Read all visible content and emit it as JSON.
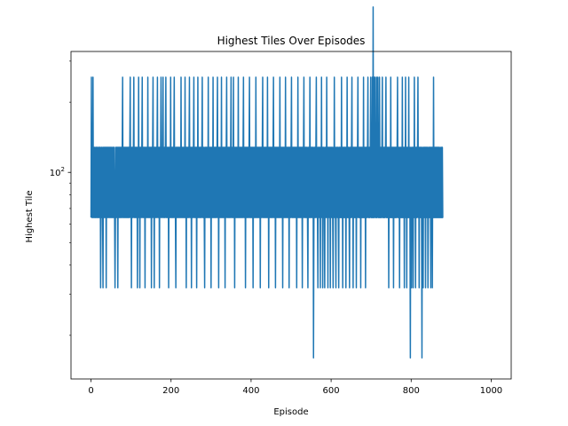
{
  "chart_data": {
    "type": "line",
    "title": "Highest Tiles Over Episodes",
    "xlabel": "Episode",
    "ylabel": "Highest Tile",
    "xlim": [
      -50,
      1050
    ],
    "ylim": [
      13.0,
      330
    ],
    "yscale": "log",
    "grid": false,
    "legend": "none",
    "x_ticks": [
      0,
      200,
      400,
      600,
      800,
      1000
    ],
    "x_tick_labels": [
      "0",
      "200",
      "400",
      "600",
      "800",
      "1000"
    ],
    "y_major_tick_value": 100,
    "y_major_tick_base": "10",
    "y_major_tick_exp": "2",
    "y_minor_ticks": [
      20,
      30,
      40,
      50,
      60,
      70,
      80,
      90,
      200,
      300
    ],
    "line_color": "#1f77b4",
    "series": [
      {
        "values": [
          64,
          256,
          64,
          128,
          64,
          256,
          64,
          128,
          64,
          128,
          64,
          64,
          128,
          64,
          128,
          64,
          128,
          64,
          64,
          128,
          64,
          128,
          64,
          128,
          32,
          64,
          128,
          64,
          128,
          64,
          32,
          128,
          64,
          128,
          64,
          128,
          64,
          128,
          32,
          128,
          64,
          128,
          64,
          128,
          64,
          128,
          64,
          128,
          64,
          128,
          64,
          128,
          64,
          64,
          128,
          64,
          128,
          64,
          128,
          64,
          32,
          64,
          128,
          64,
          128,
          64,
          128,
          32,
          128,
          64,
          128,
          64,
          128,
          64,
          128,
          64,
          128,
          64,
          128,
          256,
          64,
          128,
          64,
          128,
          64,
          128,
          64,
          128,
          64,
          128,
          64,
          128,
          64,
          128,
          64,
          128,
          64,
          128,
          256,
          64,
          128,
          32,
          128,
          64,
          128,
          64,
          128,
          256,
          64,
          128,
          64,
          128,
          64,
          128,
          64,
          128,
          32,
          128,
          64,
          256,
          64,
          128,
          32,
          128,
          64,
          128,
          64,
          128,
          256,
          64,
          128,
          64,
          128,
          64,
          128,
          32,
          128,
          64,
          128,
          64,
          128,
          64,
          256,
          64,
          128,
          64,
          128,
          64,
          128,
          64,
          128,
          32,
          128,
          64,
          128,
          256,
          64,
          128,
          32,
          128,
          64,
          128,
          64,
          128,
          64,
          128,
          256,
          64,
          128,
          64,
          128,
          32,
          128,
          64,
          128,
          256,
          64,
          128,
          64,
          128,
          256,
          64,
          128,
          64,
          128,
          64,
          128,
          256,
          64,
          128,
          64,
          128,
          64,
          128,
          32,
          128,
          64,
          128,
          64,
          256,
          64,
          128,
          64,
          128,
          64,
          128,
          64,
          128,
          256,
          64,
          128,
          64,
          32,
          128,
          64,
          128,
          64,
          128,
          64,
          128,
          64,
          128,
          64,
          128,
          64,
          256,
          64,
          128,
          64,
          128,
          64,
          128,
          64,
          128,
          64,
          256,
          64,
          128,
          32,
          128,
          64,
          128,
          64,
          128,
          64,
          128,
          256,
          64,
          128,
          64,
          128,
          32,
          128,
          64,
          128,
          64,
          128,
          256,
          64,
          128,
          64,
          128,
          64,
          128,
          32,
          128,
          64,
          256,
          64,
          128,
          64,
          128,
          64,
          128,
          64,
          128,
          64,
          128,
          256,
          64,
          128,
          64,
          128,
          64,
          32,
          128,
          64,
          128,
          64,
          128,
          64,
          128,
          64,
          256,
          64,
          128,
          64,
          128,
          64,
          128,
          32,
          128,
          64,
          128,
          64,
          256,
          64,
          128,
          64,
          128,
          64,
          128,
          64,
          128,
          64,
          128,
          256,
          64,
          128,
          32,
          128,
          64,
          128,
          64,
          128,
          64,
          256,
          64,
          128,
          64,
          128,
          64,
          128,
          64,
          128,
          32,
          128,
          64,
          128,
          256,
          64,
          128,
          64,
          128,
          64,
          128,
          64,
          128,
          64,
          128,
          256,
          64,
          128,
          64,
          128,
          64,
          256,
          64,
          128,
          32,
          128,
          64,
          128,
          64,
          128,
          64,
          128,
          64,
          256,
          64,
          128,
          64,
          128,
          64,
          128,
          64,
          128,
          64,
          128,
          64,
          128,
          256,
          64,
          128,
          64,
          128,
          32,
          128,
          64,
          128,
          64,
          128,
          64,
          128,
          64,
          128,
          256,
          64,
          128,
          64,
          128,
          64,
          128,
          64,
          128,
          32,
          128,
          64,
          128,
          64,
          128,
          64,
          256,
          64,
          128,
          64,
          128,
          64,
          128,
          64,
          128,
          64,
          128,
          32,
          128,
          64,
          128,
          64,
          128,
          256,
          64,
          128,
          64,
          128,
          64,
          128,
          64,
          128,
          64,
          128,
          64,
          256,
          64,
          128,
          32,
          128,
          64,
          128,
          64,
          128,
          64,
          128,
          64,
          128,
          64,
          128,
          256,
          64,
          128,
          64,
          128,
          32,
          128,
          64,
          128,
          64,
          128,
          64,
          128,
          64,
          128,
          64,
          256,
          64,
          128,
          64,
          128,
          64,
          128,
          32,
          128,
          64,
          128,
          64,
          128,
          64,
          256,
          64,
          128,
          64,
          128,
          64,
          128,
          64,
          128,
          32,
          128,
          64,
          128,
          64,
          128,
          256,
          64,
          128,
          64,
          128,
          64,
          128,
          64,
          128,
          64,
          128,
          64,
          128,
          32,
          128,
          64,
          256,
          64,
          128,
          64,
          128,
          64,
          128,
          64,
          128,
          64,
          128,
          32,
          128,
          64,
          128,
          256,
          64,
          128,
          64,
          128,
          64,
          128,
          64,
          128,
          64,
          32,
          128,
          64,
          128,
          64,
          256,
          64,
          128,
          64,
          128,
          64,
          128,
          64,
          128,
          16,
          64,
          128,
          64,
          128,
          64,
          128,
          256,
          64,
          128,
          64,
          32,
          128,
          64,
          128,
          64,
          128,
          32,
          128,
          64,
          256,
          64,
          128,
          32,
          128,
          64,
          128,
          64,
          32,
          128,
          64,
          128,
          64,
          256,
          64,
          128,
          32,
          128,
          64,
          128,
          64,
          128,
          32,
          128,
          64,
          128,
          64,
          128,
          64,
          32,
          128,
          64,
          256,
          64,
          128,
          64,
          32,
          128,
          64,
          128,
          64,
          128,
          64,
          32,
          128,
          64,
          128,
          64,
          128,
          64,
          256,
          64,
          128,
          32,
          128,
          64,
          128,
          64,
          128,
          64,
          128,
          32,
          128,
          64,
          256,
          64,
          128,
          64,
          128,
          64,
          32,
          128,
          64,
          128,
          64,
          128,
          256,
          64,
          128,
          32,
          128,
          64,
          128,
          64,
          128,
          64,
          128,
          32,
          128,
          64,
          128,
          256,
          64,
          128,
          64,
          128,
          64,
          128,
          32,
          128,
          64,
          128,
          64,
          128,
          64,
          256,
          64,
          128,
          64,
          128,
          32,
          128,
          64,
          128,
          64,
          128,
          256,
          64,
          128,
          64,
          128,
          64,
          128,
          256,
          64,
          128,
          64,
          256,
          64,
          512,
          64,
          256,
          64,
          128,
          256,
          64,
          128,
          64,
          256,
          64,
          128,
          256,
          64,
          128,
          64,
          256,
          64,
          128,
          64,
          128,
          64,
          128,
          256,
          64,
          128,
          64,
          128,
          64,
          128,
          64,
          128,
          256,
          64,
          128,
          64,
          128,
          64,
          128,
          32,
          128,
          64,
          128,
          64,
          256,
          64,
          128,
          64,
          128,
          64,
          128,
          32,
          128,
          64,
          128,
          64,
          128,
          64,
          128,
          64,
          128,
          256,
          64,
          128,
          64,
          128,
          32,
          128,
          64,
          128,
          64,
          128,
          64,
          256,
          64,
          128,
          64,
          128,
          32,
          128,
          64,
          256,
          64,
          128,
          32,
          128,
          64,
          128,
          64,
          256,
          64,
          128,
          64,
          16,
          128,
          64,
          32,
          128,
          64,
          128,
          32,
          128,
          64,
          256,
          64,
          128,
          32,
          128,
          64,
          128,
          64,
          128,
          256,
          64,
          128,
          32,
          128,
          64,
          128,
          64,
          128,
          64,
          16,
          128,
          64,
          32,
          128,
          64,
          128,
          64,
          128,
          32,
          128,
          64,
          128,
          64,
          128,
          32,
          64,
          128,
          64,
          128,
          64,
          128,
          32,
          128,
          64,
          128,
          32,
          128,
          64,
          256,
          64,
          128,
          64,
          128,
          64,
          128,
          64,
          128,
          64,
          128,
          64,
          128,
          64,
          128,
          64,
          64,
          128,
          64,
          64,
          128,
          64,
          128,
          64,
          64
        ]
      }
    ]
  }
}
